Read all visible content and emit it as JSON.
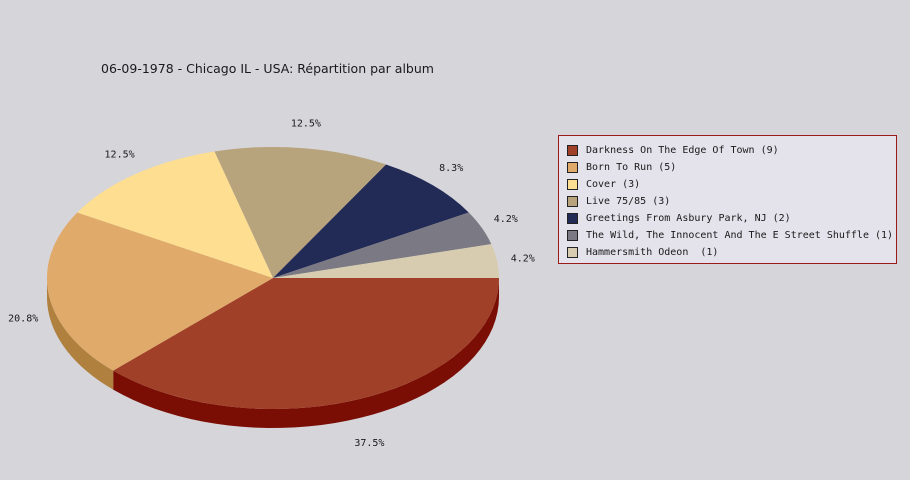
{
  "chart_data": {
    "type": "pie",
    "title": "06-09-1978 - Chicago IL - USA:  Répartition par album",
    "categories": [
      "Darkness On The Edge Of Town (9)",
      "Born To Run (5)",
      "Cover (3)",
      "Live 75/85 (3)",
      "Greetings From Asbury Park, NJ (2)",
      "The Wild, The Innocent And The E Street Shuffle (1)",
      "Hammersmith Odeon  (1)"
    ],
    "values": [
      9,
      5,
      3,
      3,
      2,
      1,
      1
    ],
    "percent_labels": [
      "37.5%",
      "20.8%",
      "12.5%",
      "12.5%",
      "8.3%",
      "4.2%",
      "4.2%"
    ],
    "colors": [
      "#a04028",
      "#e0aa6a",
      "#fede90",
      "#b8a47c",
      "#222a56",
      "#7a7984",
      "#d8ccb0"
    ],
    "side_colors": [
      "#7a0e04",
      "#b0803e",
      "#c0a860",
      "#8c7c58",
      "#10163a",
      "#56555e",
      "#a89c80"
    ],
    "legend_placement": "right",
    "style": "3d"
  }
}
